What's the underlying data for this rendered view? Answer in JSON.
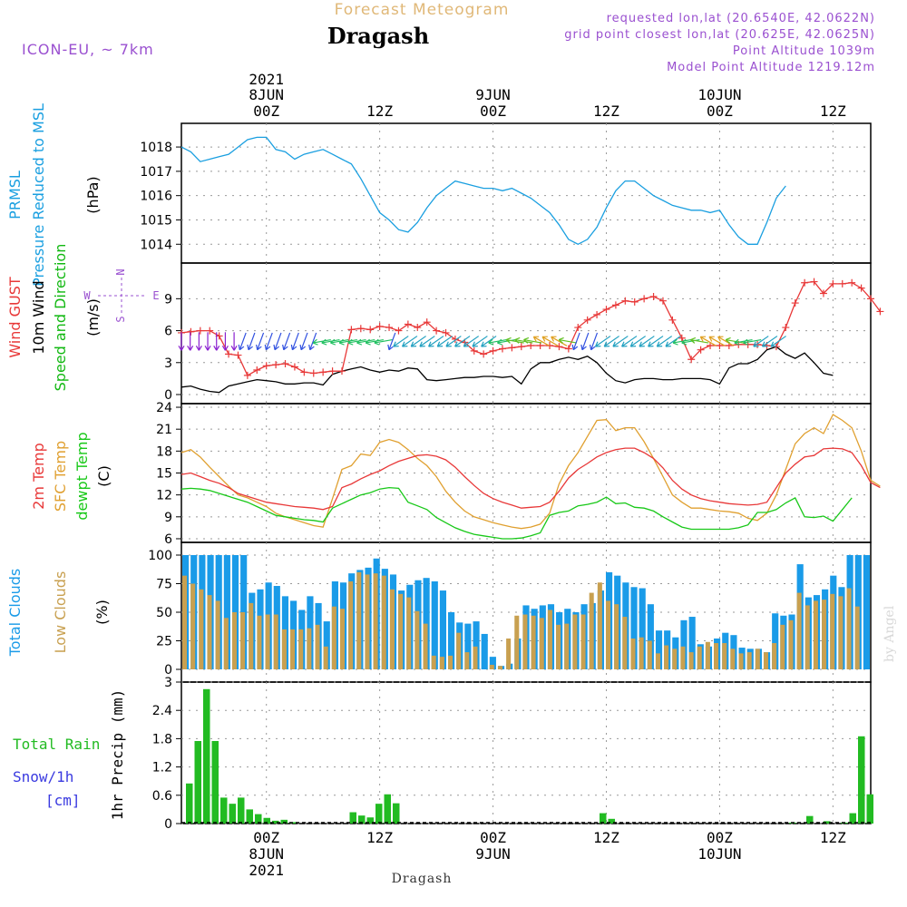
{
  "header": {
    "subtitle": "Forecast Meteogram",
    "location": "Dragash",
    "model": "ICON-EU, ~ 7km",
    "requested": "requested lon,lat (20.6540E, 42.0622N)",
    "gridpoint": "grid point closest lon,lat (20.625E, 42.0625N)",
    "point_alt": "Point Altitude 1039m",
    "model_alt": "Model Point Altitude 1219.12m",
    "watermark": "by Angel",
    "footer": "Dragash"
  },
  "colors": {
    "pressure": "#1a9fe0",
    "gust": "#e83838",
    "wind": "#000000",
    "direction": "#12b812",
    "temp": "#e83838",
    "sfc": "#e0a030",
    "dewpt": "#18c818",
    "total_clouds": "#1a9be8",
    "low_clouds": "#c8a050",
    "rain": "#22bb22",
    "snow": "#3a3ae0",
    "header_purple": "#9a50d0",
    "subtitle_orange": "#e0b878"
  },
  "time_axis": {
    "top_labels": [
      {
        "year": "2021",
        "date": "8JUN",
        "hour": "00Z"
      },
      {
        "year": "",
        "date": "",
        "hour": "12Z"
      },
      {
        "year": "",
        "date": "9JUN",
        "hour": "00Z"
      },
      {
        "year": "",
        "date": "",
        "hour": "12Z"
      },
      {
        "year": "",
        "date": "10JUN",
        "hour": "00Z"
      },
      {
        "year": "",
        "date": "",
        "hour": "12Z"
      }
    ],
    "bottom_labels": [
      {
        "hour": "00Z",
        "date": "8JUN",
        "year": "2021"
      },
      {
        "hour": "12Z",
        "date": "",
        "year": ""
      },
      {
        "hour": "00Z",
        "date": "9JUN",
        "year": ""
      },
      {
        "hour": "12Z",
        "date": "",
        "year": ""
      },
      {
        "hour": "00Z",
        "date": "10JUN",
        "year": ""
      },
      {
        "hour": "12Z",
        "date": "",
        "year": ""
      }
    ]
  },
  "compass": {
    "n": "N",
    "s": "S",
    "e": "E",
    "w": "W"
  },
  "panels": [
    {
      "id": "pressure",
      "labels": [
        {
          "text": "PRMSL",
          "color": "pressure"
        },
        {
          "text": "Pressure Reduced to MSL",
          "color": "pressure"
        },
        {
          "text": "(hPa)",
          "color": "wind"
        }
      ],
      "ticks": [
        "1014",
        "1015",
        "1016",
        "1017",
        "1018"
      ]
    },
    {
      "id": "wind",
      "labels": [
        {
          "text": "Wind GUST",
          "color": "gust"
        },
        {
          "text": "10m Wind",
          "color": "wind"
        },
        {
          "text": "Speed and Direction",
          "color": "direction"
        },
        {
          "text": "(m/s)",
          "color": "wind"
        }
      ],
      "ticks": [
        "0",
        "3",
        "6",
        "9"
      ]
    },
    {
      "id": "temp",
      "labels": [
        {
          "text": "2m Temp",
          "color": "temp"
        },
        {
          "text": "SFC Temp",
          "color": "sfc"
        },
        {
          "text": "dewpt Temp",
          "color": "dewpt"
        },
        {
          "text": "(C)",
          "color": "wind"
        }
      ],
      "ticks": [
        "6",
        "9",
        "12",
        "15",
        "18",
        "21",
        "24"
      ]
    },
    {
      "id": "clouds",
      "labels": [
        {
          "text": "Total Clouds",
          "color": "total_clouds"
        },
        {
          "text": "Low Clouds",
          "color": "low_clouds"
        },
        {
          "text": "(%)",
          "color": "wind"
        }
      ],
      "ticks": [
        "0",
        "25",
        "50",
        "75",
        "100"
      ]
    },
    {
      "id": "precip",
      "labels": [
        {
          "text": "Total  Rain",
          "color": "rain"
        },
        {
          "text": "Snow/1h",
          "color": "snow"
        },
        {
          "text": "[cm]",
          "color": "snow"
        },
        {
          "text": "1hr Precip (mm)",
          "color": "wind"
        }
      ],
      "ticks": [
        "0",
        "0.6",
        "1.2",
        "1.8",
        "2.4",
        "3"
      ]
    }
  ],
  "chart_data": {
    "type": "meteogram",
    "x_hours": {
      "start": -9,
      "end": 55,
      "step": 1,
      "labeled_ticks": [
        0,
        12,
        24,
        36,
        48,
        60
      ]
    },
    "pressure": {
      "ylim": [
        1013.6,
        1018.6
      ],
      "values": [
        1018.0,
        1017.8,
        1017.4,
        1017.5,
        1017.6,
        1017.7,
        1018.0,
        1018.3,
        1018.4,
        1018.4,
        1017.9,
        1017.8,
        1017.5,
        1017.7,
        1017.8,
        1017.9,
        1017.7,
        1017.5,
        1017.3,
        1016.7,
        1016.0,
        1015.3,
        1015.0,
        1014.6,
        1014.5,
        1014.9,
        1015.5,
        1016.0,
        1016.3,
        1016.6,
        1016.5,
        1016.4,
        1016.3,
        1016.3,
        1016.2,
        1016.3,
        1016.1,
        1015.9,
        1015.6,
        1015.3,
        1014.8,
        1014.2,
        1014.0,
        1014.2,
        1014.7,
        1015.5,
        1016.2,
        1016.6,
        1016.6,
        1016.3,
        1016.0,
        1015.8,
        1015.6,
        1015.5,
        1015.4,
        1015.4,
        1015.3,
        1015.4,
        1014.8,
        1014.3,
        1014.0,
        1014.0,
        1014.9,
        1015.9,
        1016.4
      ]
    },
    "wind_gust": {
      "ylim": [
        0,
        11.5
      ],
      "values": [
        5.8,
        5.9,
        6.0,
        6.0,
        5.5,
        3.8,
        3.7,
        1.8,
        2.3,
        2.7,
        2.8,
        2.9,
        2.6,
        2.1,
        2.0,
        2.1,
        2.2,
        2.2,
        6.1,
        6.2,
        6.1,
        6.4,
        6.3,
        6.0,
        6.6,
        6.3,
        6.8,
        6.0,
        5.8,
        5.2,
        4.9,
        4.1,
        3.8,
        4.1,
        4.3,
        4.4,
        4.5,
        4.6,
        4.6,
        4.6,
        4.5,
        4.3,
        6.3,
        7.0,
        7.5,
        8.0,
        8.4,
        8.8,
        8.7,
        9.0,
        9.2,
        8.8,
        7.0,
        5.3,
        3.3,
        4.2,
        4.6,
        4.6,
        4.6,
        4.7,
        4.7,
        4.7,
        4.6,
        4.5,
        6.3,
        8.6,
        10.5,
        10.6,
        9.5,
        10.4,
        10.4,
        10.5,
        10.0,
        9.0,
        7.8
      ]
    },
    "wind_speed": {
      "ylim": [
        0,
        11.5
      ],
      "values": [
        0.7,
        0.8,
        0.5,
        0.3,
        0.2,
        0.8,
        1.0,
        1.2,
        1.4,
        1.3,
        1.2,
        1.0,
        1.0,
        1.1,
        1.1,
        0.9,
        1.9,
        2.2,
        2.4,
        2.6,
        2.3,
        2.1,
        2.3,
        2.2,
        2.5,
        2.4,
        1.4,
        1.3,
        1.4,
        1.5,
        1.6,
        1.6,
        1.7,
        1.7,
        1.6,
        1.7,
        1.0,
        2.4,
        3.0,
        3.0,
        3.3,
        3.5,
        3.3,
        3.6,
        3.0,
        2.0,
        1.3,
        1.1,
        1.4,
        1.5,
        1.5,
        1.4,
        1.4,
        1.5,
        1.5,
        1.5,
        1.4,
        1.0,
        2.5,
        2.9,
        2.9,
        3.3,
        4.2,
        4.5,
        3.8,
        3.4,
        3.9,
        3.0,
        2.0,
        1.8
      ]
    },
    "wind_dir": {
      "arrow_colors": [
        "#8a20d0",
        "#3050e0",
        "#20a0c0",
        "#20c060",
        "#60c020",
        "#e0a020"
      ],
      "values": [
        0,
        0,
        0,
        0,
        0,
        0,
        0,
        1,
        1,
        1,
        1,
        1,
        1,
        1,
        1,
        1,
        3,
        3,
        3,
        3,
        3,
        3,
        3,
        3,
        1,
        2,
        2,
        2,
        2,
        2,
        2,
        2,
        2,
        2,
        2,
        2,
        3,
        3,
        4,
        4,
        4,
        5,
        5,
        5,
        4,
        1,
        1,
        1,
        2,
        2,
        2,
        2,
        2,
        2,
        2,
        2,
        2,
        3,
        3,
        4,
        5,
        5,
        5,
        4,
        3,
        3,
        2,
        2,
        2
      ]
    },
    "temp_2m": {
      "ylim": [
        5.5,
        24.5
      ],
      "values": [
        14.8,
        15.0,
        14.5,
        14.0,
        13.6,
        13.0,
        12.2,
        11.8,
        11.4,
        11.0,
        10.8,
        10.6,
        10.4,
        10.3,
        10.2,
        10.0,
        10.4,
        13.0,
        13.5,
        14.2,
        14.8,
        15.3,
        16.0,
        16.6,
        17.0,
        17.4,
        17.5,
        17.3,
        16.8,
        15.8,
        14.5,
        13.3,
        12.2,
        11.5,
        11.0,
        10.6,
        10.2,
        10.3,
        10.4,
        11.0,
        12.5,
        14.3,
        15.5,
        16.3,
        17.2,
        17.8,
        18.2,
        18.4,
        18.4,
        17.8,
        17.0,
        15.7,
        14.0,
        12.8,
        12.0,
        11.5,
        11.2,
        11.0,
        10.8,
        10.7,
        10.6,
        10.7,
        11.0,
        13.0,
        15.0,
        16.2,
        17.2,
        17.4,
        18.3,
        18.4,
        18.3,
        17.8,
        16.0,
        13.7,
        13.0
      ]
    },
    "temp_sfc": {
      "ylim": [
        5.5,
        24.5
      ],
      "values": [
        17.8,
        18.2,
        17.2,
        15.8,
        14.5,
        13.2,
        12.0,
        11.6,
        11.0,
        10.4,
        9.5,
        9.0,
        8.6,
        8.2,
        7.8,
        7.6,
        11.5,
        15.5,
        16.0,
        17.6,
        17.4,
        19.2,
        19.6,
        19.2,
        18.2,
        17.0,
        16.0,
        14.5,
        12.5,
        11.0,
        9.8,
        9.0,
        8.6,
        8.2,
        7.9,
        7.6,
        7.4,
        7.6,
        8.0,
        9.5,
        13.5,
        16.0,
        17.8,
        20.0,
        22.2,
        22.3,
        20.8,
        21.2,
        21.2,
        19.3,
        17.0,
        14.5,
        12.0,
        11.0,
        10.2,
        10.2,
        10.0,
        9.8,
        9.7,
        9.5,
        8.8,
        8.5,
        9.5,
        12.0,
        15.5,
        19.0,
        20.4,
        21.2,
        20.4,
        23.0,
        22.2,
        21.2,
        18.0,
        14.0,
        13.2
      ]
    },
    "dewpt": {
      "ylim": [
        5.5,
        24.5
      ],
      "values": [
        12.8,
        12.9,
        12.8,
        12.6,
        12.2,
        11.8,
        11.4,
        11.0,
        10.4,
        9.8,
        9.2,
        9.0,
        8.8,
        8.6,
        8.5,
        8.3,
        10.2,
        10.8,
        11.4,
        12.0,
        12.3,
        12.8,
        13.0,
        12.9,
        11.0,
        10.5,
        10.0,
        8.9,
        8.2,
        7.5,
        7.0,
        6.6,
        6.4,
        6.2,
        6.0,
        6.0,
        6.1,
        6.4,
        6.8,
        9.2,
        9.6,
        9.8,
        10.5,
        10.7,
        11.0,
        11.7,
        10.8,
        10.9,
        10.3,
        10.2,
        9.8,
        9.0,
        8.3,
        7.6,
        7.3,
        7.3,
        7.3,
        7.3,
        7.3,
        7.5,
        7.9,
        9.6,
        9.6,
        10.0,
        10.9,
        11.6,
        9.0,
        8.9,
        9.1,
        8.4,
        10.0,
        11.6
      ]
    },
    "total_clouds": {
      "ylim": [
        0,
        100
      ],
      "values": [
        100,
        100,
        100,
        100,
        100,
        100,
        100,
        100,
        67,
        70,
        76,
        73,
        64,
        60,
        52,
        64,
        58,
        42,
        77,
        76,
        84,
        87,
        89,
        97,
        88,
        83,
        69,
        74,
        78,
        80,
        77,
        69,
        50,
        41,
        40,
        42,
        31,
        11,
        3,
        5,
        27,
        56,
        53,
        56,
        57,
        50,
        53,
        50,
        57,
        58,
        69,
        85,
        82,
        76,
        72,
        71,
        57,
        34,
        34,
        28,
        43,
        46,
        22,
        20,
        27,
        32,
        30,
        19,
        18,
        18,
        15,
        49,
        47,
        48,
        92,
        63,
        65,
        70,
        82,
        72,
        100,
        100,
        100
      ]
    },
    "low_clouds": {
      "ylim": [
        0,
        100
      ],
      "values": [
        82,
        75,
        70,
        65,
        60,
        45,
        50,
        50,
        58,
        47,
        48,
        48,
        35,
        35,
        35,
        36,
        39,
        20,
        55,
        53,
        77,
        85,
        83,
        84,
        82,
        70,
        66,
        63,
        51,
        40,
        12,
        11,
        12,
        32,
        15,
        20,
        0,
        4,
        3,
        27,
        47,
        48,
        47,
        45,
        52,
        39,
        40,
        48,
        48,
        67,
        76,
        60,
        57,
        46,
        27,
        28,
        25,
        14,
        21,
        18,
        20,
        15,
        20,
        24,
        23,
        23,
        18,
        14,
        15,
        18,
        15,
        23,
        39,
        43,
        67,
        56,
        60,
        61,
        66,
        64,
        71,
        55
      ]
    },
    "precip_rain": {
      "ylim": [
        0,
        3
      ],
      "values": [
        0.85,
        1.75,
        2.85,
        1.75,
        0.55,
        0.42,
        0.55,
        0.3,
        0.2,
        0.12,
        0.06,
        0.08,
        0.03,
        0,
        0,
        0,
        0,
        0,
        0,
        0.24,
        0.17,
        0.13,
        0.42,
        0.62,
        0.43,
        0,
        0,
        0,
        0,
        0,
        0,
        0,
        0,
        0,
        0,
        0,
        0,
        0,
        0,
        0,
        0,
        0,
        0,
        0,
        0,
        0,
        0,
        0,
        0.22,
        0.1,
        0,
        0,
        0,
        0,
        0,
        0,
        0,
        0,
        0,
        0,
        0,
        0,
        0,
        0,
        0,
        0,
        0,
        0,
        0,
        0,
        0.02,
        0,
        0.16,
        0,
        0.05,
        0,
        0.02,
        0.22,
        1.85,
        0.62
      ]
    },
    "precip_snow": {
      "values": []
    }
  }
}
